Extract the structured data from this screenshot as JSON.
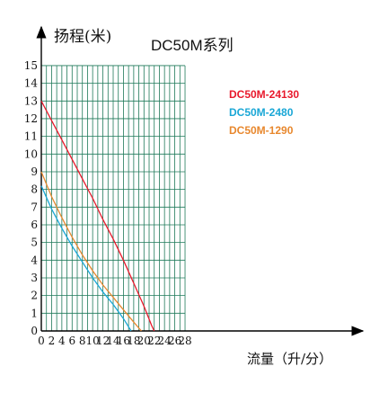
{
  "chart_data": {
    "type": "line",
    "title": "DC50M系列",
    "ylabel": "扬程(米)",
    "xlabel": "流量（升/分）",
    "xlim": [
      0,
      28
    ],
    "ylim": [
      0,
      15
    ],
    "x_ticks": [
      "0",
      "2",
      "4",
      "6",
      "8",
      "10",
      "12",
      "14",
      "16",
      "18",
      "20",
      "22",
      "24",
      "26",
      "28"
    ],
    "y_ticks": [
      "0",
      "1",
      "2",
      "3",
      "4",
      "5",
      "6",
      "7",
      "8",
      "9",
      "10",
      "11",
      "12",
      "13",
      "14",
      "15"
    ],
    "grid": true,
    "legend_position": "top-right",
    "series": [
      {
        "name": "DC50M-24130",
        "color": "#e8192c",
        "points": [
          [
            0,
            13.0
          ],
          [
            2,
            11.9
          ],
          [
            4,
            10.8
          ],
          [
            6,
            9.7
          ],
          [
            8,
            8.6
          ],
          [
            10,
            7.5
          ],
          [
            12,
            6.3
          ],
          [
            14,
            5.2
          ],
          [
            16,
            4.0
          ],
          [
            18,
            2.7
          ],
          [
            20,
            1.4
          ],
          [
            21.5,
            0.3
          ],
          [
            22,
            0.0
          ]
        ]
      },
      {
        "name": "DC50M-2480",
        "color": "#1aa7d6",
        "points": [
          [
            0,
            8.2
          ],
          [
            2,
            6.9
          ],
          [
            4,
            5.8
          ],
          [
            6,
            4.8
          ],
          [
            8,
            3.9
          ],
          [
            10,
            3.0
          ],
          [
            12,
            2.2
          ],
          [
            14,
            1.5
          ],
          [
            16,
            0.7
          ],
          [
            17.5,
            0.0
          ]
        ]
      },
      {
        "name": "DC50M-1290",
        "color": "#e8882e",
        "points": [
          [
            0,
            9.0
          ],
          [
            2,
            7.6
          ],
          [
            4,
            6.4
          ],
          [
            6,
            5.3
          ],
          [
            8,
            4.3
          ],
          [
            10,
            3.4
          ],
          [
            12,
            2.6
          ],
          [
            14,
            1.9
          ],
          [
            16,
            1.2
          ],
          [
            18,
            0.5
          ],
          [
            19.5,
            0.0
          ]
        ]
      }
    ]
  }
}
